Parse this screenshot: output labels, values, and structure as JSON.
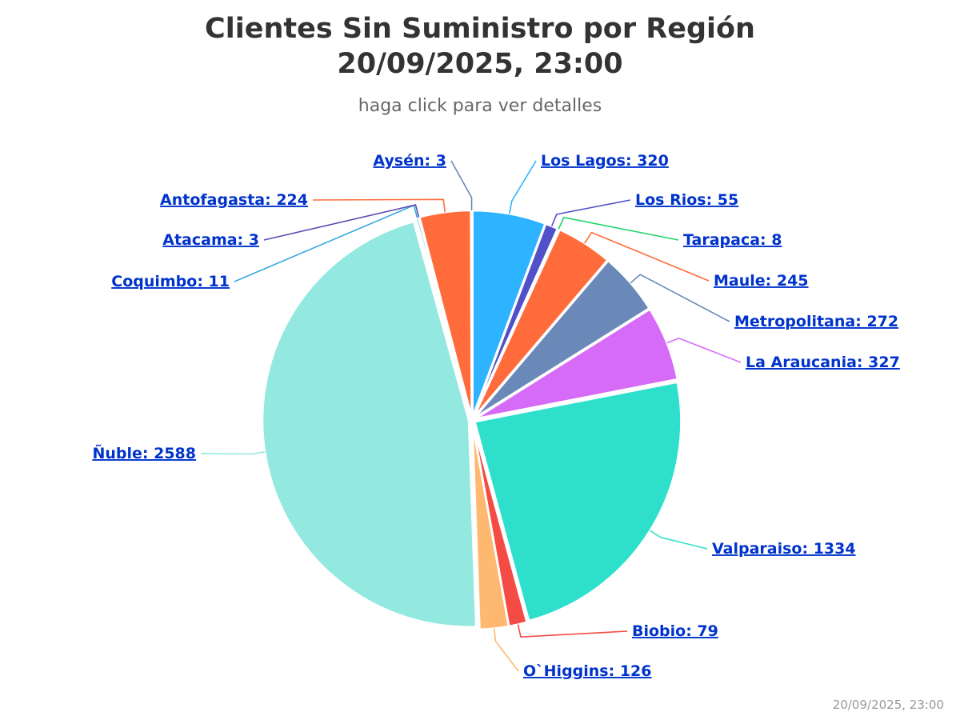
{
  "header": {
    "title_line1": "Clientes Sin Suministro por Región",
    "title_line2": "20/09/2025, 23:00",
    "subtitle": "haga click para ver detalles"
  },
  "credit": "20/09/2025, 23:00",
  "chart_data": {
    "type": "pie",
    "title": "Clientes Sin Suministro por Región 20/09/2025, 23:00",
    "subtitle": "haga click para ver detalles",
    "slices": [
      {
        "name": "Los Lagos",
        "value": 320,
        "label": "Los Lagos: 320",
        "color": "#2db3ff"
      },
      {
        "name": "Los Rios",
        "value": 55,
        "label": "Los Rios: 55",
        "color": "#5050c8"
      },
      {
        "name": "Tarapaca",
        "value": 8,
        "label": "Tarapaca: 8",
        "color": "#22d46e"
      },
      {
        "name": "Maule",
        "value": 245,
        "label": "Maule: 245",
        "color": "#ff6b3a"
      },
      {
        "name": "Metropolitana",
        "value": 272,
        "label": "Metropolitana: 272",
        "color": "#6a89b8"
      },
      {
        "name": "La Araucania",
        "value": 327,
        "label": "La Araucania: 327",
        "color": "#d56bf7"
      },
      {
        "name": "Valparaiso",
        "value": 1334,
        "label": "Valparaiso: 1334",
        "color": "#2ee0cc"
      },
      {
        "name": "Biobio",
        "value": 79,
        "label": "Biobio: 79",
        "color": "#f44b44"
      },
      {
        "name": "O`Higgins",
        "value": 126,
        "label": "O`Higgins: 126",
        "color": "#ffb870"
      },
      {
        "name": "Ñuble",
        "value": 2588,
        "label": "Ñuble: 2588",
        "color": "#93e8df"
      },
      {
        "name": "Coquimbo",
        "value": 11,
        "label": "Coquimbo: 11",
        "color": "#3aa8e0"
      },
      {
        "name": "Atacama",
        "value": 3,
        "label": "Atacama: 3",
        "color": "#5a4bb0"
      },
      {
        "name": "Antofagasta",
        "value": 224,
        "label": "Antofagasta: 224",
        "color": "#ff6b3a"
      },
      {
        "name": "Aysén",
        "value": 3,
        "label": "Aysén: 3",
        "color": "#6a89b8"
      }
    ],
    "legend": "none"
  }
}
